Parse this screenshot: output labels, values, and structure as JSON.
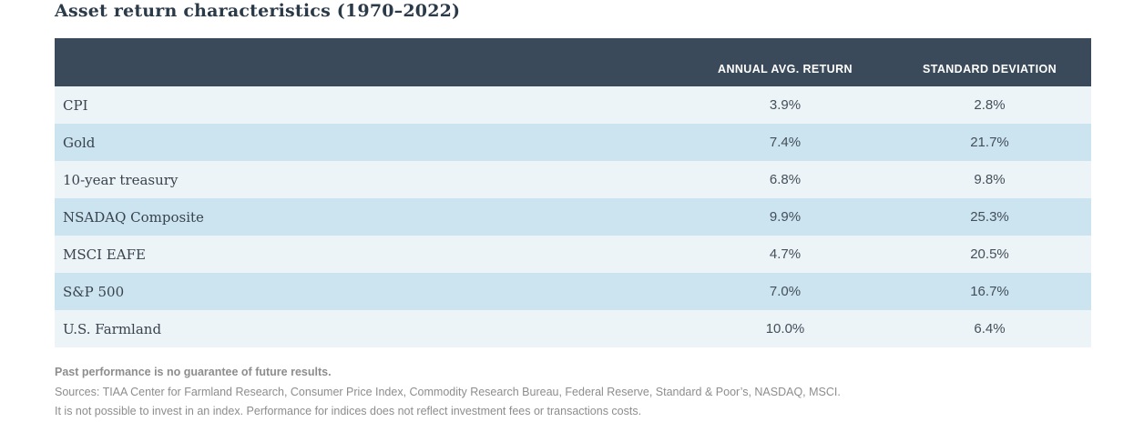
{
  "title": "Asset return characteristics (1970–2022)",
  "table": {
    "columns": [
      "",
      "ANNUAL AVG. RETURN",
      "STANDARD DEVIATION"
    ],
    "rows": [
      {
        "label": "CPI",
        "annual_avg_return": "3.9%",
        "standard_deviation": "2.8%"
      },
      {
        "label": "Gold",
        "annual_avg_return": "7.4%",
        "standard_deviation": "21.7%"
      },
      {
        "label": "10-year treasury",
        "annual_avg_return": "6.8%",
        "standard_deviation": "9.8%"
      },
      {
        "label": "NSADAQ Composite",
        "annual_avg_return": "9.9%",
        "standard_deviation": "25.3%"
      },
      {
        "label": "MSCI EAFE",
        "annual_avg_return": "4.7%",
        "standard_deviation": "20.5%"
      },
      {
        "label": "S&P 500",
        "annual_avg_return": "7.0%",
        "standard_deviation": "16.7%"
      },
      {
        "label": "U.S. Farmland",
        "annual_avg_return": "10.0%",
        "standard_deviation": "6.4%"
      }
    ]
  },
  "footnotes": {
    "disclaimer": "Past performance is no guarantee of future results.",
    "sources": "Sources: TIAA Center for Farmland Research, Consumer Price Index, Commodity Research Bureau, Federal Reserve, Standard & Poor’s, NASDAQ, MSCI.",
    "index_note": "It is not possible to invest in an index. Performance for indices does not reflect investment fees or transactions costs."
  },
  "colors": {
    "header_background": "#3b4a5a",
    "row_light": "#edf4f8",
    "row_blue": "#cbe4f0",
    "title_text": "#2b3a49",
    "cell_text": "#434f59",
    "footnote_text": "#8d8d8d"
  },
  "chart_data": {
    "type": "table",
    "title": "Asset return characteristics (1970–2022)",
    "categories": [
      "CPI",
      "Gold",
      "10-year treasury",
      "NSADAQ Composite",
      "MSCI EAFE",
      "S&P 500",
      "U.S. Farmland"
    ],
    "series": [
      {
        "name": "Annual avg. return (%)",
        "values": [
          3.9,
          7.4,
          6.8,
          9.9,
          4.7,
          7.0,
          10.0
        ]
      },
      {
        "name": "Standard deviation (%)",
        "values": [
          2.8,
          21.7,
          9.8,
          25.3,
          20.5,
          16.7,
          6.4
        ]
      }
    ]
  }
}
